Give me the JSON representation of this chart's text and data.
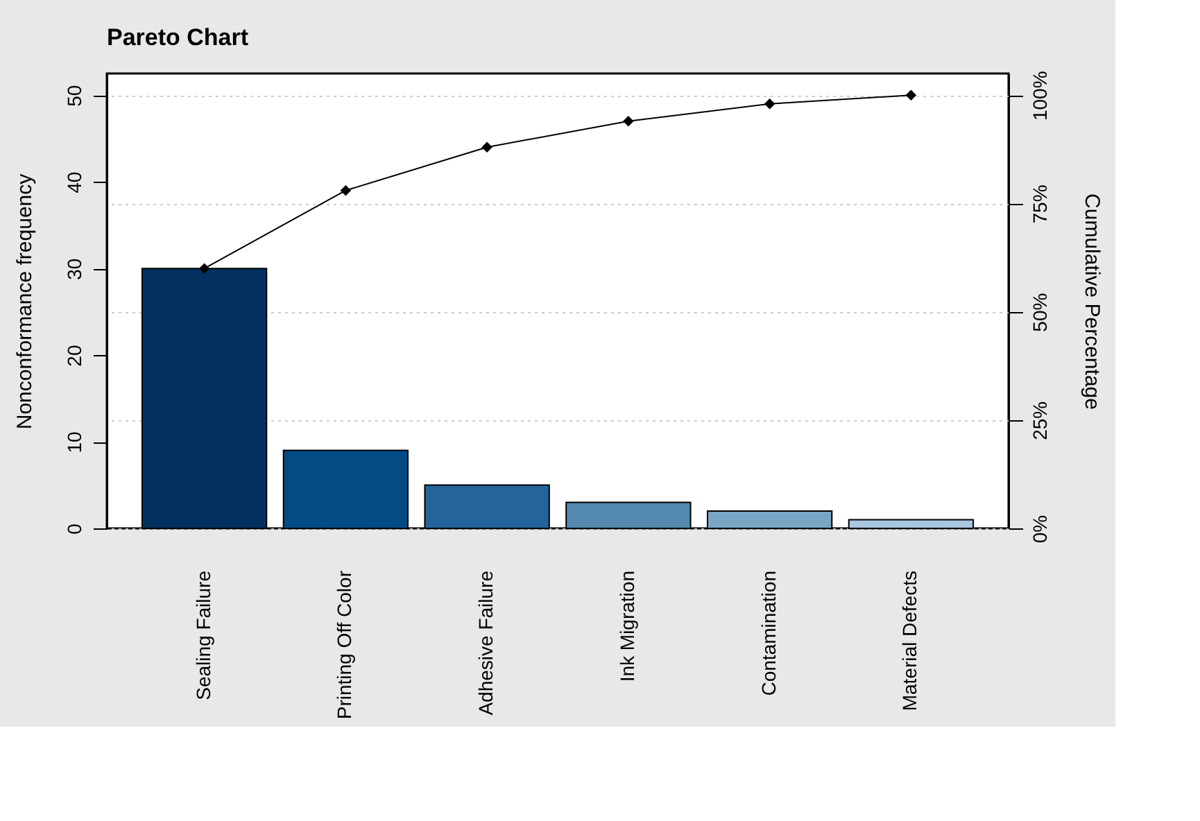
{
  "chart_data": {
    "type": "bar",
    "title": "Pareto Chart",
    "ylabel": "Nonconformance frequency",
    "y2label": "Cumulative Percentage",
    "categories": [
      "Sealing Failure",
      "Printing Off Color",
      "Adhesive Failure",
      "Ink Migration",
      "Contamination",
      "Material Defects"
    ],
    "series": [
      {
        "colors": [
          "#03315f",
          "#034b85",
          "#25649a",
          "#5389ae",
          "#7aa6c5",
          "#a9c6df"
        ],
        "values": [
          30,
          9,
          5,
          3,
          2,
          1
        ]
      },
      {
        "type": "line",
        "axis": "y2",
        "color": "#000000",
        "marker": "diamond",
        "line_style": "solid",
        "values": [
          60,
          78,
          88,
          94,
          98,
          100
        ]
      }
    ],
    "ylim": [
      0,
      52.5
    ],
    "yticks": [
      0,
      10,
      20,
      30,
      40,
      50
    ],
    "y2lim": [
      0,
      105
    ],
    "y2ticks": [
      {
        "value": 0,
        "label": "0%"
      },
      {
        "value": 25,
        "label": "25%"
      },
      {
        "value": 50,
        "label": "50%"
      },
      {
        "value": 75,
        "label": "75%"
      },
      {
        "value": 100,
        "label": "100%"
      }
    ],
    "grid": "y2"
  }
}
